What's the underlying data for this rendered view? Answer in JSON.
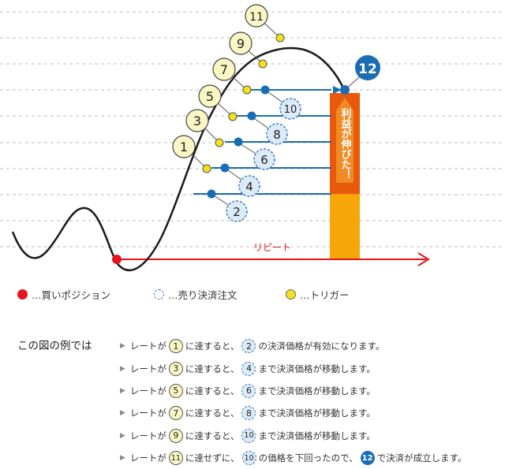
{
  "diagram": {
    "trigger_labels": [
      "1",
      "3",
      "5",
      "7",
      "9",
      "11"
    ],
    "sell_labels": [
      "2",
      "4",
      "6",
      "8",
      "10"
    ],
    "settle_label": "12",
    "profit_label": "利益が伸びた！",
    "repeat_label": "リピート",
    "colors": {
      "buy": "#e8141c",
      "trigger": "#f5e11a",
      "sell_line": "#1a6cb5",
      "repeat": "#e8141c",
      "bar_top": "#e8590c",
      "bar_bottom": "#f6a609"
    }
  },
  "legend": {
    "buy": "…買いポジション",
    "sell": "…売り決済注文",
    "trigger": "…トリガー"
  },
  "explain": {
    "title": "この図の例では",
    "steps": [
      {
        "p1": "レートが",
        "t": "1",
        "p2": "に達すると、",
        "s": "2",
        "p3": "の決済価格が有効になります。"
      },
      {
        "p1": "レートが",
        "t": "3",
        "p2": "に達すると、",
        "s": "4",
        "p3": "まで決済価格が移動します。"
      },
      {
        "p1": "レートが",
        "t": "5",
        "p2": "に達すると、",
        "s": "6",
        "p3": "まで決済価格が移動します。"
      },
      {
        "p1": "レートが",
        "t": "7",
        "p2": "に達すると、",
        "s": "8",
        "p3": "まで決済価格が移動します。"
      },
      {
        "p1": "レートが",
        "t": "9",
        "p2": "に達すると、",
        "s": "10",
        "p3": "まで決済価格が移動します。"
      }
    ],
    "last": {
      "p1": "レートが",
      "t": "11",
      "p2": "に達せずに、",
      "s": "10",
      "p3": "の価格を下回ったので、",
      "d": "12",
      "p4": "で決済が成立します。"
    }
  }
}
